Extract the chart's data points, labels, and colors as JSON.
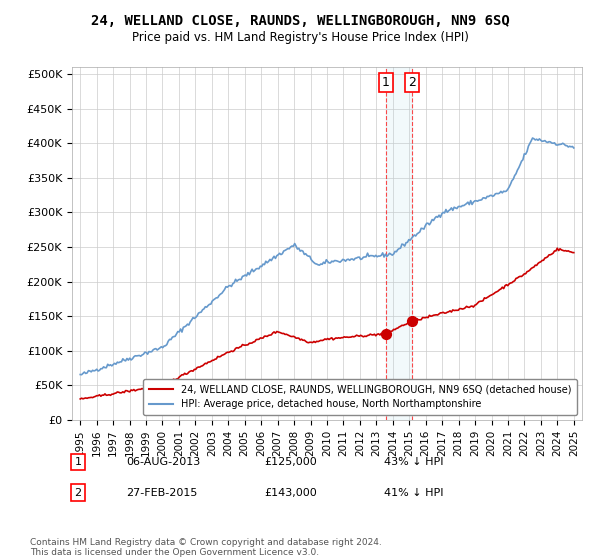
{
  "title": "24, WELLAND CLOSE, RAUNDS, WELLINGBOROUGH, NN9 6SQ",
  "subtitle": "Price paid vs. HM Land Registry's House Price Index (HPI)",
  "legend_red": "24, WELLAND CLOSE, RAUNDS, WELLINGBOROUGH, NN9 6SQ (detached house)",
  "legend_blue": "HPI: Average price, detached house, North Northamptonshire",
  "transaction1_date": "06-AUG-2013",
  "transaction1_price": 125000,
  "transaction1_pct": "43% ↓ HPI",
  "transaction2_date": "27-FEB-2015",
  "transaction2_price": 143000,
  "transaction2_pct": "41% ↓ HPI",
  "footer": "Contains HM Land Registry data © Crown copyright and database right 2024.\nThis data is licensed under the Open Government Licence v3.0.",
  "yticks": [
    0,
    50000,
    100000,
    150000,
    200000,
    250000,
    300000,
    350000,
    400000,
    450000,
    500000
  ],
  "background_color": "#ffffff",
  "grid_color": "#cccccc",
  "red_color": "#cc0000",
  "blue_color": "#6699cc",
  "transaction1_x": 2013.58,
  "transaction2_x": 2015.16
}
